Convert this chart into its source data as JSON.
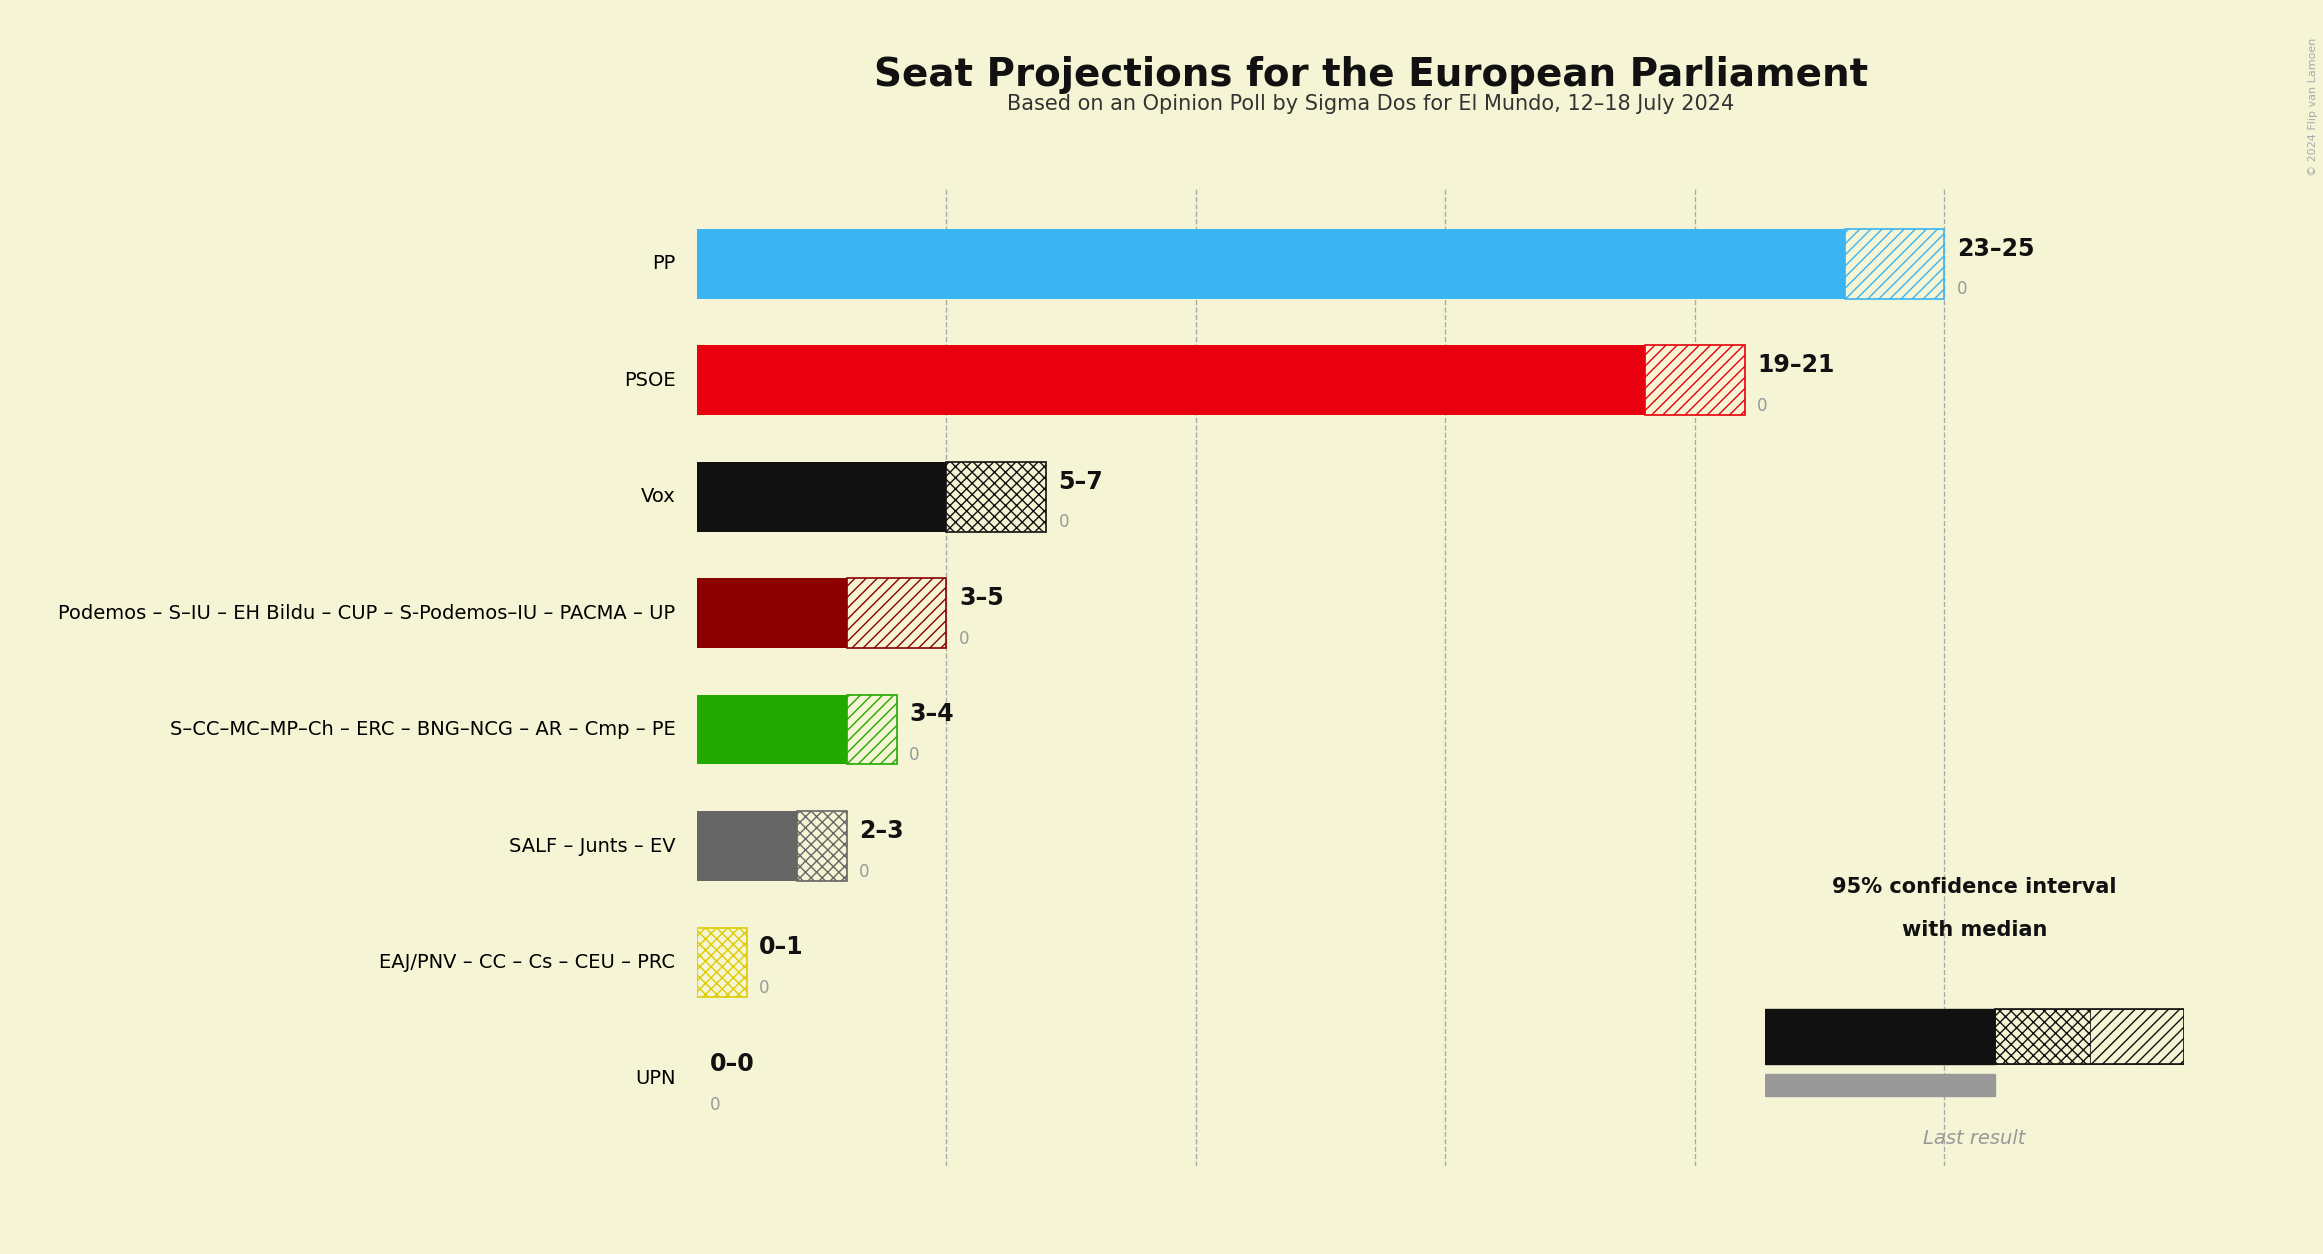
{
  "title": "Seat Projections for the European Parliament",
  "subtitle": "Based on an Opinion Poll by Sigma Dos for El Mundo, 12–18 July 2024",
  "background_color": "#f5f5d5",
  "parties": [
    "PP",
    "PSOE",
    "Vox",
    "Podemos – S–IU – EH Bildu – CUP – S-Podemos–IU – PACMA – UP",
    "S–CC–MC–MP–Ch – ERC – BNG–NCG – AR – Cmp – PE",
    "SALF – Junts – EV",
    "EAJ/PNV – CC – Cs – CEU – PRC",
    "UPN"
  ],
  "median_seats": [
    23,
    19,
    5,
    3,
    3,
    2,
    0,
    0
  ],
  "low_seats": [
    23,
    19,
    5,
    3,
    3,
    2,
    0,
    0
  ],
  "high_seats": [
    25,
    21,
    7,
    5,
    4,
    3,
    1,
    0
  ],
  "label_text": [
    "23–25",
    "19–21",
    "5–7",
    "3–5",
    "3–4",
    "2–3",
    "0–1",
    "0–0"
  ],
  "colors": [
    "#3ab4f2",
    "#e8000e",
    "#111111",
    "#8b0000",
    "#22aa00",
    "#666666",
    "#ddcc00",
    "#111111"
  ],
  "hatch_styles": [
    "///",
    "///",
    "xxx",
    "///",
    "///",
    "xxx",
    "xxx",
    "xxx"
  ],
  "x_max": 27,
  "gridline_positions": [
    5,
    10,
    15,
    20,
    25
  ],
  "legend_text_line1": "95% confidence interval",
  "legend_text_line2": "with median",
  "legend_last_result": "Last result",
  "copyright": "© 2024 Flip van Lamoen"
}
